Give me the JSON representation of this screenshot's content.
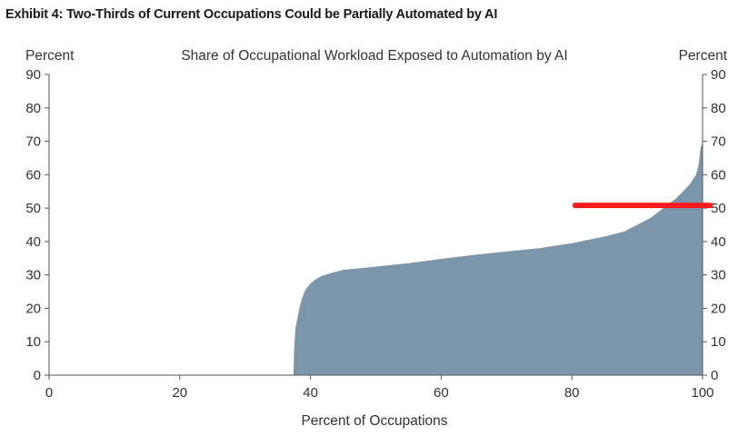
{
  "exhibit_title": "Exhibit 4: Two-Thirds of Current Occupations Could be Partially Automated by AI",
  "chart_data": {
    "type": "area",
    "title": "Share of Occupational Workload Exposed to Automation by AI",
    "xlabel": "Percent of Occupations",
    "ylabel_left": "Percent",
    "ylabel_right": "Percent",
    "xlim": [
      0,
      100
    ],
    "ylim": [
      0,
      90
    ],
    "x_ticks": [
      0,
      20,
      40,
      60,
      80,
      100
    ],
    "y_ticks": [
      0,
      10,
      20,
      30,
      40,
      50,
      60,
      70,
      80,
      90
    ],
    "grid": false,
    "area_color": "#7b96ab",
    "x": [
      0,
      37.4,
      37.5,
      37.7,
      38.0,
      38.3,
      38.7,
      39.2,
      39.8,
      40.5,
      41.5,
      43,
      45,
      50,
      55,
      60,
      65,
      70,
      75,
      80,
      85,
      88,
      90,
      92,
      94,
      96,
      97,
      98,
      99,
      99.4,
      99.7,
      100
    ],
    "values": [
      0,
      0,
      8,
      14,
      17,
      20,
      23,
      25.5,
      27,
      28.3,
      29.5,
      30.5,
      31.5,
      32.5,
      33.5,
      34.8,
      36,
      37,
      38,
      39.5,
      41.5,
      43,
      45,
      47,
      50,
      53,
      55,
      57,
      60,
      63,
      68,
      70
    ],
    "reference_line": {
      "y": 50.8,
      "x_start": 80.5,
      "x_end": 100,
      "color": "#ff1c1c"
    }
  }
}
